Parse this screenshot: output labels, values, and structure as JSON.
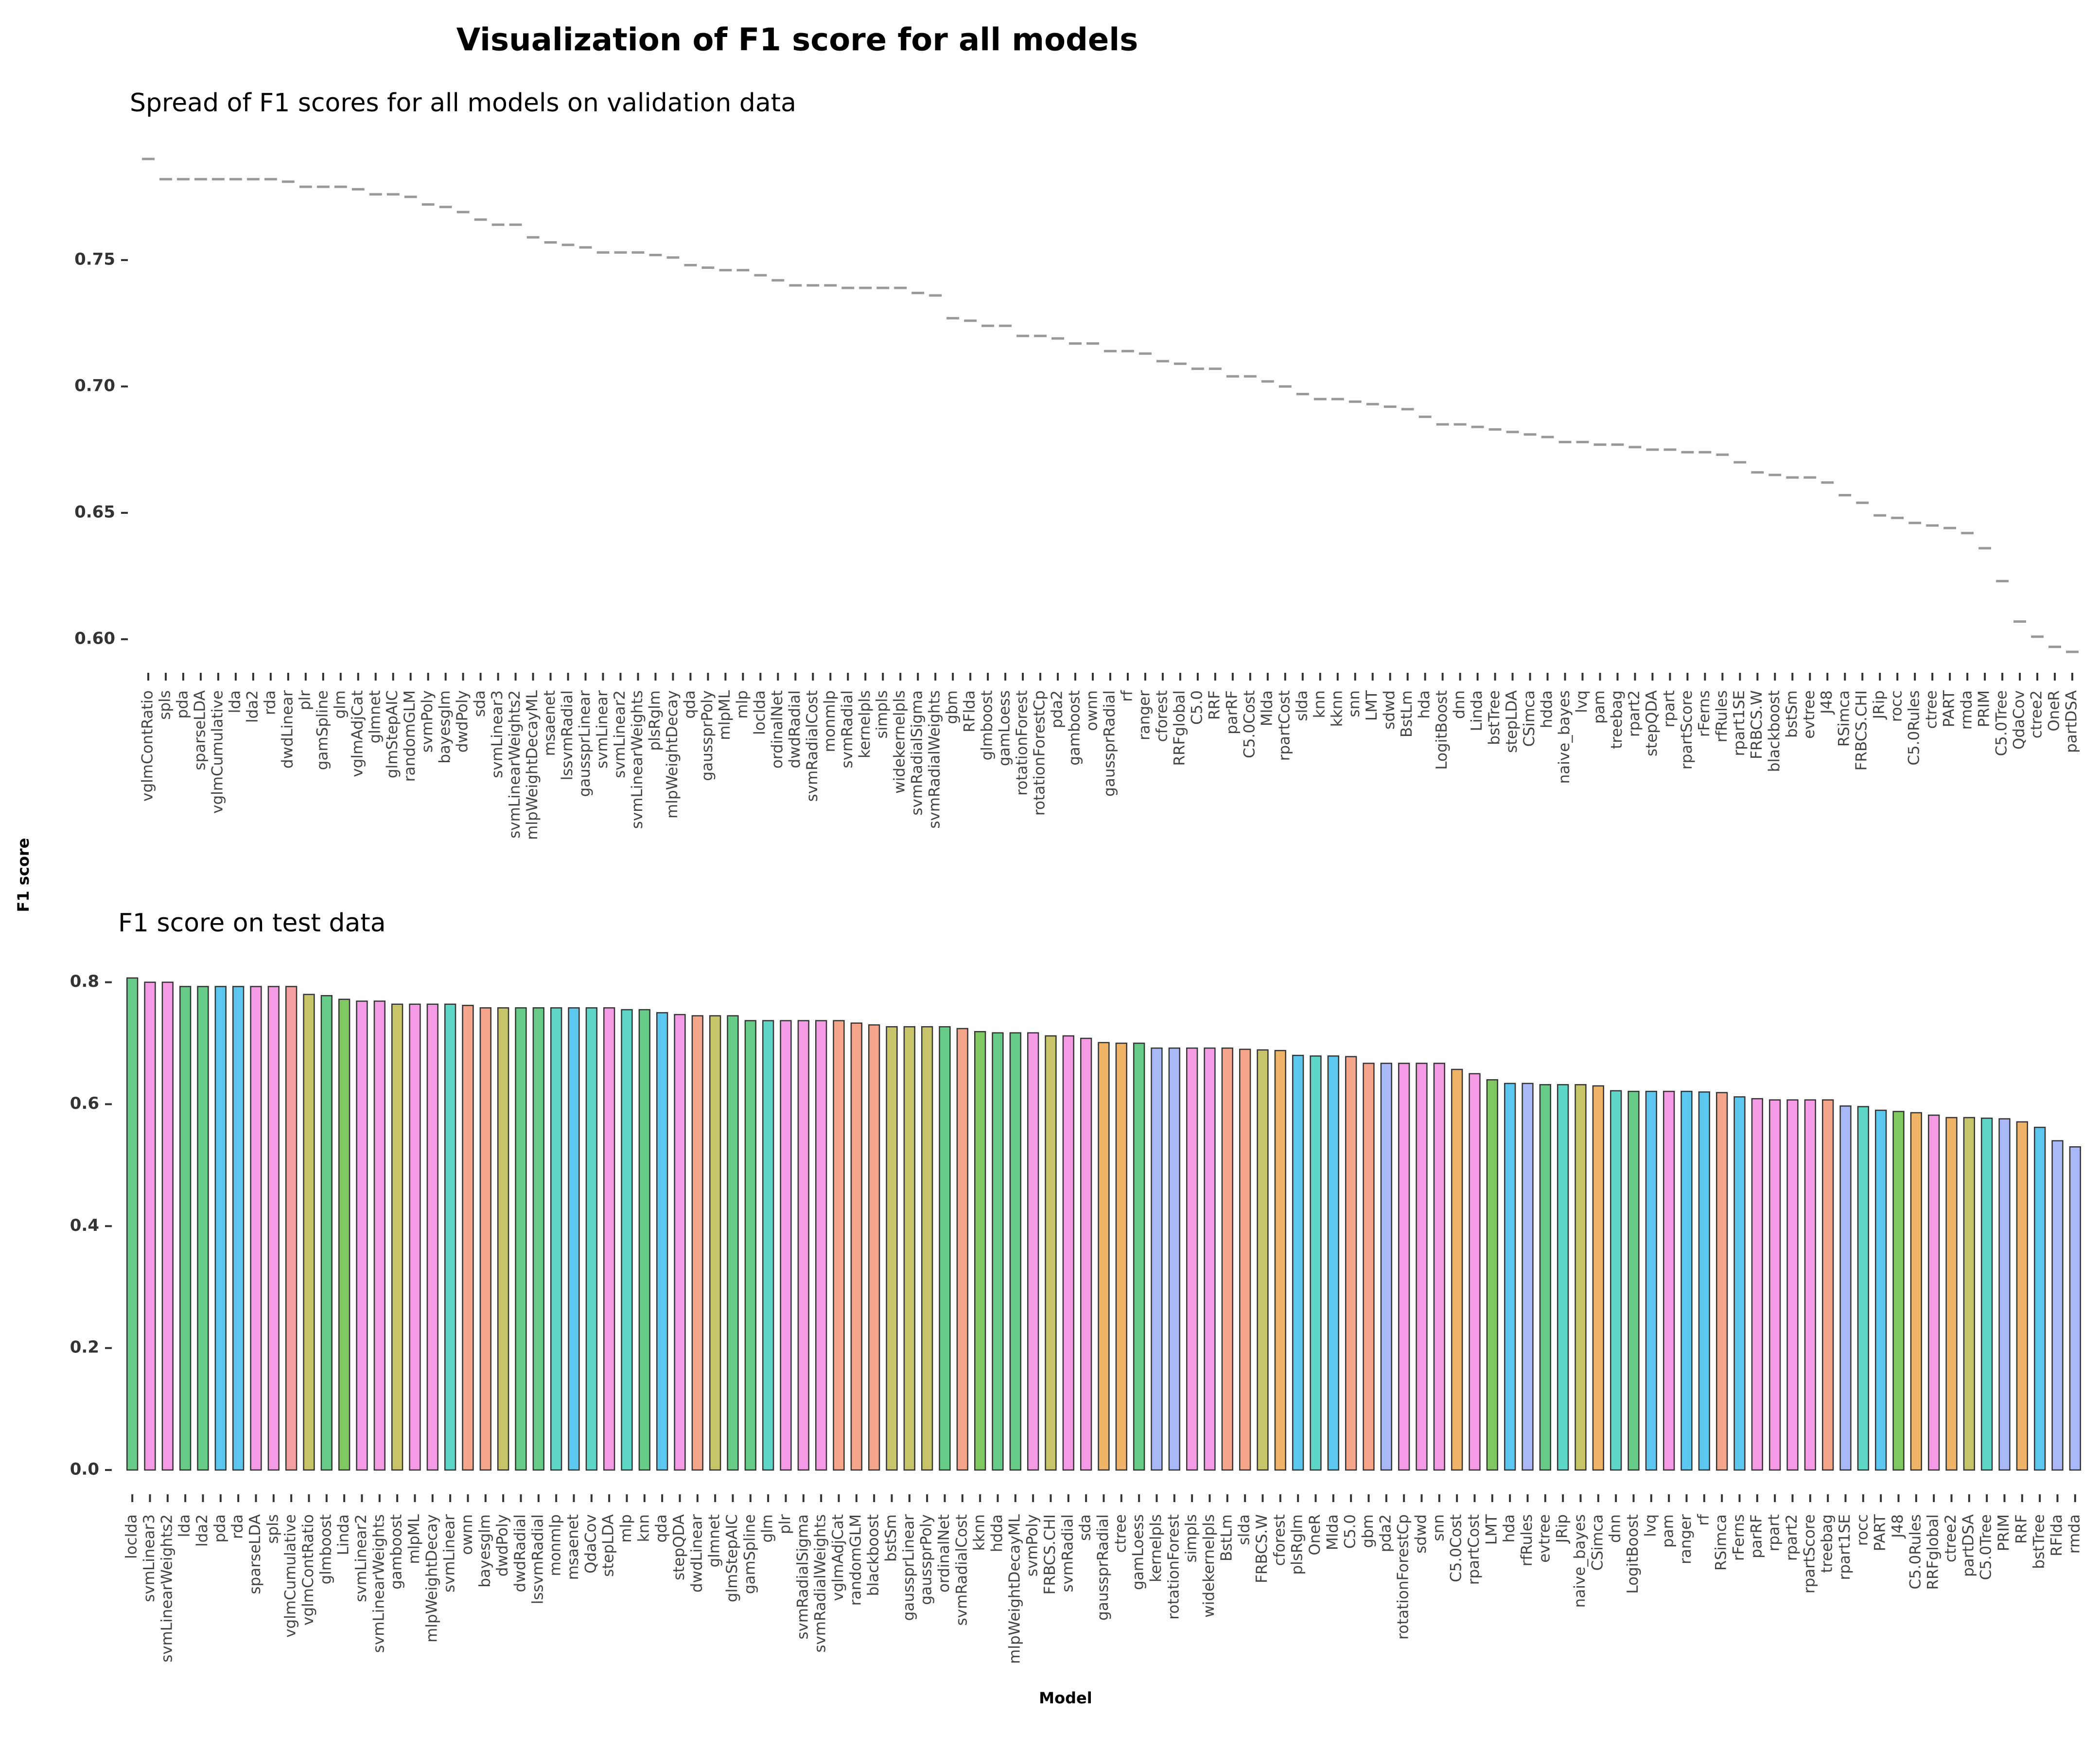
{
  "title": "Visualization of F1 score for all models",
  "ylabel": "F1 score",
  "xlabel": "Model",
  "chart_data": [
    {
      "type": "crossbar",
      "title": "Spread of F1 scores for all models on validation data",
      "color": "#999999",
      "categories": [
        "vglmContRatio",
        "spls",
        "pda",
        "sparseLDA",
        "vglmCumulative",
        "lda",
        "lda2",
        "rda",
        "dwdLinear",
        "plr",
        "gamSpline",
        "glm",
        "vglmAdjCat",
        "glmnet",
        "glmStepAIC",
        "randomGLM",
        "svmPoly",
        "bayesglm",
        "dwdPoly",
        "sda",
        "svmLinear3",
        "svmLinearWeights2",
        "mlpWeightDecayML",
        "msaenet",
        "lssvmRadial",
        "gaussprLinear",
        "svmLinear",
        "svmLinear2",
        "svmLinearWeights",
        "plsRglm",
        "mlpWeightDecay",
        "qda",
        "gaussprPoly",
        "mlpML",
        "mlp",
        "loclda",
        "ordinalNet",
        "dwdRadial",
        "svmRadialCost",
        "monmlp",
        "svmRadial",
        "kernelpls",
        "simpls",
        "widekernelpls",
        "svmRadialSigma",
        "svmRadialWeights",
        "gbm",
        "RFlda",
        "glmboost",
        "gamLoess",
        "rotationForest",
        "rotationForestCp",
        "pda2",
        "gamboost",
        "ownn",
        "gaussprRadial",
        "rf",
        "ranger",
        "cforest",
        "RRFglobal",
        "C5.0",
        "RRF",
        "parRF",
        "C5.0Cost",
        "Mlda",
        "rpartCost",
        "slda",
        "knn",
        "kknn",
        "snn",
        "LMT",
        "sdwd",
        "BstLm",
        "hda",
        "LogitBoost",
        "dnn",
        "Linda",
        "bstTree",
        "stepLDA",
        "CSimca",
        "hdda",
        "naive_bayes",
        "lvq",
        "pam",
        "treebag",
        "rpart2",
        "stepQDA",
        "rpart",
        "rpartScore",
        "rFerns",
        "rfRules",
        "rpart1SE",
        "FRBCS.W",
        "blackboost",
        "bstSm",
        "evtree",
        "J48",
        "RSimca",
        "FRBCS.CHI",
        "JRip",
        "rocc",
        "C5.0Rules",
        "ctree",
        "PART",
        "rmda",
        "PRIM",
        "C5.0Tree",
        "QdaCov",
        "ctree2",
        "OneR",
        "partDSA"
      ],
      "values": [
        0.79,
        0.782,
        0.782,
        0.782,
        0.782,
        0.782,
        0.782,
        0.782,
        0.781,
        0.779,
        0.779,
        0.779,
        0.778,
        0.776,
        0.776,
        0.775,
        0.772,
        0.771,
        0.769,
        0.766,
        0.764,
        0.764,
        0.759,
        0.757,
        0.756,
        0.755,
        0.753,
        0.753,
        0.753,
        0.752,
        0.751,
        0.748,
        0.747,
        0.746,
        0.746,
        0.744,
        0.742,
        0.74,
        0.74,
        0.74,
        0.739,
        0.739,
        0.739,
        0.739,
        0.737,
        0.736,
        0.727,
        0.726,
        0.724,
        0.724,
        0.72,
        0.72,
        0.719,
        0.717,
        0.717,
        0.714,
        0.714,
        0.713,
        0.71,
        0.709,
        0.707,
        0.707,
        0.704,
        0.704,
        0.702,
        0.7,
        0.697,
        0.695,
        0.695,
        0.694,
        0.693,
        0.692,
        0.691,
        0.688,
        0.685,
        0.685,
        0.684,
        0.683,
        0.682,
        0.681,
        0.68,
        0.678,
        0.678,
        0.677,
        0.677,
        0.676,
        0.675,
        0.675,
        0.674,
        0.674,
        0.673,
        0.67,
        0.666,
        0.665,
        0.664,
        0.664,
        0.662,
        0.657,
        0.654,
        0.649,
        0.648,
        0.646,
        0.645,
        0.644,
        0.642,
        0.636,
        0.623,
        0.607,
        0.601,
        0.597,
        0.595
      ],
      "ylim": [
        0.59,
        0.8
      ],
      "yticks": [
        {
          "value": 0.6,
          "label": "0.60"
        },
        0.65,
        {
          "value": 0.7,
          "label": "0.70"
        },
        0.75
      ]
    },
    {
      "type": "bar",
      "title": "F1 score on test data",
      "categories": [
        "loclda",
        "svmLinear3",
        "svmLinearWeights2",
        "lda",
        "lda2",
        "pda",
        "rda",
        "sparseLDA",
        "spls",
        "vglmCumulative",
        "vglmContRatio",
        "glmboost",
        "Linda",
        "svmLinear2",
        "svmLinearWeights",
        "gamboost",
        "mlpML",
        "mlpWeightDecay",
        "svmLinear",
        "ownn",
        "bayesglm",
        "dwdPoly",
        "dwdRadial",
        "lssvmRadial",
        "monmlp",
        "msaenet",
        "QdaCov",
        "stepLDA",
        "mlp",
        "knn",
        "qda",
        "stepQDA",
        "dwdLinear",
        "glmnet",
        "glmStepAIC",
        "gamSpline",
        "glm",
        "plr",
        "svmRadialSigma",
        "svmRadialWeights",
        "vglmAdjCat",
        "randomGLM",
        "blackboost",
        "bstSm",
        "gaussprLinear",
        "gaussprPoly",
        "ordinalNet",
        "svmRadialCost",
        "kknn",
        "hdda",
        "mlpWeightDecayML",
        "svmPoly",
        "FRBCS.CHI",
        "svmRadial",
        "sda",
        "gaussprRadial",
        "ctree",
        "gamLoess",
        "kernelpls",
        "rotationForest",
        "simpls",
        "widekernelpls",
        "BstLm",
        "slda",
        "FRBCS.W",
        "cforest",
        "plsRglm",
        "OneR",
        "Mlda",
        "C5.0",
        "gbm",
        "pda2",
        "rotationForestCp",
        "sdwd",
        "snn",
        "C5.0Cost",
        "rpartCost",
        "LMT",
        "hda",
        "rfRules",
        "evtree",
        "JRip",
        "naive_bayes",
        "CSimca",
        "dnn",
        "LogitBoost",
        "lvq",
        "pam",
        "ranger",
        "rf",
        "RSimca",
        "rFerns",
        "parRF",
        "rpart",
        "rpart2",
        "rpartScore",
        "treebag",
        "rpart1SE",
        "rocc",
        "PART",
        "J48",
        "C5.0Rules",
        "RRFglobal",
        "ctree2",
        "partDSA",
        "C5.0Tree",
        "PRIM",
        "RRF",
        "bstTree",
        "RFlda",
        "rmda"
      ],
      "values": [
        0.807,
        0.8,
        0.8,
        0.793,
        0.793,
        0.793,
        0.793,
        0.793,
        0.793,
        0.793,
        0.78,
        0.778,
        0.772,
        0.769,
        0.769,
        0.764,
        0.764,
        0.764,
        0.764,
        0.762,
        0.758,
        0.758,
        0.758,
        0.758,
        0.758,
        0.758,
        0.758,
        0.758,
        0.755,
        0.755,
        0.75,
        0.747,
        0.745,
        0.745,
        0.745,
        0.737,
        0.737,
        0.737,
        0.737,
        0.737,
        0.737,
        0.733,
        0.73,
        0.727,
        0.727,
        0.727,
        0.727,
        0.724,
        0.719,
        0.717,
        0.717,
        0.717,
        0.712,
        0.712,
        0.708,
        0.701,
        0.7,
        0.7,
        0.692,
        0.692,
        0.692,
        0.692,
        0.692,
        0.69,
        0.689,
        0.688,
        0.68,
        0.679,
        0.679,
        0.678,
        0.667,
        0.667,
        0.667,
        0.667,
        0.667,
        0.657,
        0.65,
        0.64,
        0.634,
        0.634,
        0.632,
        0.632,
        0.632,
        0.63,
        0.622,
        0.621,
        0.621,
        0.621,
        0.621,
        0.62,
        0.619,
        0.612,
        0.609,
        0.607,
        0.607,
        0.607,
        0.607,
        0.597,
        0.596,
        0.59,
        0.588,
        0.586,
        0.582,
        0.578,
        0.578,
        0.577,
        0.576,
        0.571,
        0.562,
        0.54,
        0.53
      ],
      "colors": [
        "#66cc88",
        "#f59be6",
        "#f59be6",
        "#66cc88",
        "#66cc88",
        "#5cc8f0",
        "#5cc8f0",
        "#f59be6",
        "#f59be6",
        "#f5a0a0",
        "#c8c46a",
        "#66cc88",
        "#80c860",
        "#f59be6",
        "#f59be6",
        "#c8c46a",
        "#f59be6",
        "#f59be6",
        "#5dd6c8",
        "#f4a58a",
        "#f4a58a",
        "#c8c46a",
        "#66cc88",
        "#66cc88",
        "#5dd6c8",
        "#5cc8f0",
        "#5dd6c8",
        "#f59be6",
        "#5dd6c8",
        "#66cc88",
        "#5cc8f0",
        "#f59be6",
        "#f4a58a",
        "#c8c46a",
        "#66cc88",
        "#66cc88",
        "#5dd6c8",
        "#f59be6",
        "#f59be6",
        "#f59be6",
        "#f4a58a",
        "#f4a58a",
        "#f4a58a",
        "#c8c46a",
        "#c8c46a",
        "#c8c46a",
        "#66cc88",
        "#f4a58a",
        "#80c860",
        "#66cc88",
        "#66cc88",
        "#f59be6",
        "#c8c46a",
        "#f59be6",
        "#f59be6",
        "#f0b468",
        "#f0b468",
        "#66cc88",
        "#a8b8f8",
        "#a8b8f8",
        "#f59be6",
        "#f59be6",
        "#f4a58a",
        "#f4a58a",
        "#c8c46a",
        "#f0b468",
        "#5cc8f0",
        "#5dd6c8",
        "#5cc8f0",
        "#f4a58a",
        "#f4a58a",
        "#a8b8f8",
        "#f59be6",
        "#f59be6",
        "#f59be6",
        "#f0b468",
        "#f59be6",
        "#80c860",
        "#5cc8f0",
        "#a8b8f8",
        "#66cc88",
        "#5dd6c8",
        "#c8c46a",
        "#f0b468",
        "#5dd6c8",
        "#66cc88",
        "#5cc8f0",
        "#f59be6",
        "#5cc8f0",
        "#5cc8f0",
        "#f4a58a",
        "#5cc8f0",
        "#f59be6",
        "#f59be6",
        "#f59be6",
        "#f59be6",
        "#f4a58a",
        "#a8b8f8",
        "#5dd6c8",
        "#5cc8f0",
        "#80c860",
        "#f0b468",
        "#f59be6",
        "#f0b468",
        "#c8c46a",
        "#5dd6c8",
        "#a8b8f8",
        "#f0b468",
        "#5cc8f0",
        "#a8b8f8",
        "#a8b8f8"
      ],
      "ylim": [
        0,
        0.83
      ],
      "yticks": [
        {
          "value": 0,
          "label": "0.0"
        },
        0.2,
        0.4,
        0.6,
        0.8
      ]
    }
  ]
}
